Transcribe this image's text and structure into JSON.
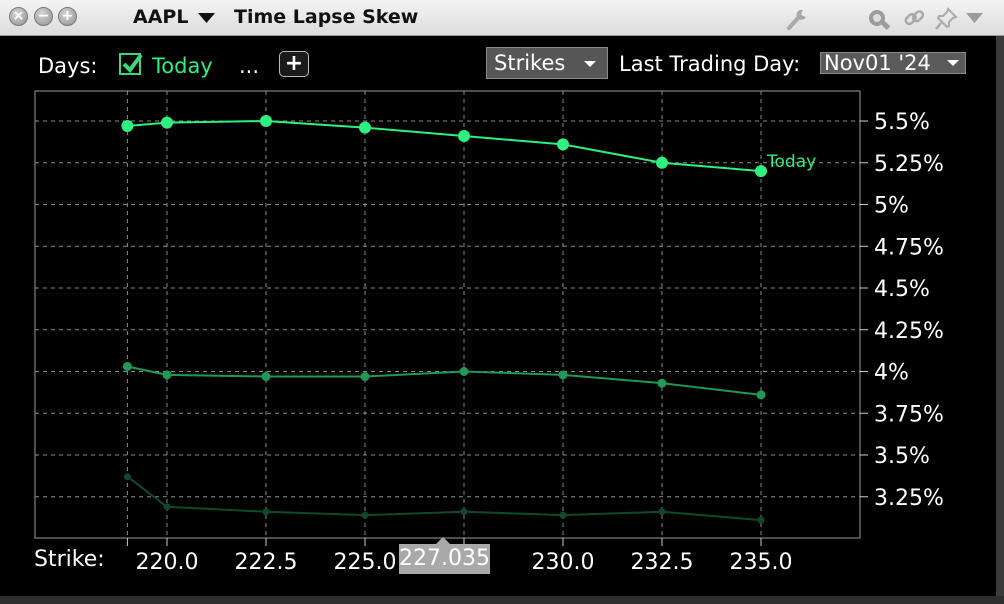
{
  "window": {
    "symbol": "AAPL",
    "title": "Time Lapse Skew"
  },
  "toolbar": {
    "days_label": "Days:",
    "today_label": "Today",
    "more_label": "...",
    "add_symbol": "+",
    "strikes_label": "Strikes",
    "last_trading_day_label": "Last Trading Day:",
    "last_trading_day_value": "Nov01 '24"
  },
  "colors": {
    "today": "#2ef07f",
    "series2": "#1f9a55",
    "series3": "#0f4a28",
    "grid": "#8a8a8a"
  },
  "chart_data": {
    "type": "line",
    "x_label": "Strike:",
    "x": [
      219.0,
      220.0,
      222.5,
      225.0,
      227.5,
      230.0,
      232.5,
      235.0
    ],
    "x_ticks": [
      "220.0",
      "222.5",
      "225.0",
      "230.0",
      "232.5",
      "235.0"
    ],
    "x_tick_values": [
      220.0,
      222.5,
      225.0,
      230.0,
      232.5,
      235.0
    ],
    "hover_label": "227.035",
    "y_ticks": [
      "5.5%",
      "5.25%",
      "5%",
      "4.75%",
      "4.5%",
      "4.25%",
      "4%",
      "3.75%",
      "3.5%",
      "3.25%"
    ],
    "y_tick_values": [
      5.5,
      5.25,
      5.0,
      4.75,
      4.5,
      4.25,
      4.0,
      3.75,
      3.5,
      3.25
    ],
    "series": [
      {
        "name": "Today",
        "values": [
          5.47,
          5.49,
          5.5,
          5.46,
          5.41,
          5.36,
          5.25,
          5.2
        ],
        "marker": "large"
      },
      {
        "values": [
          4.03,
          3.98,
          3.97,
          3.97,
          4.0,
          3.98,
          3.93,
          3.86
        ],
        "marker": "medium"
      },
      {
        "values": [
          3.37,
          3.19,
          3.16,
          3.14,
          3.16,
          3.14,
          3.16,
          3.11
        ],
        "marker": "small"
      }
    ],
    "grid": true,
    "y_axis_side": "right"
  }
}
